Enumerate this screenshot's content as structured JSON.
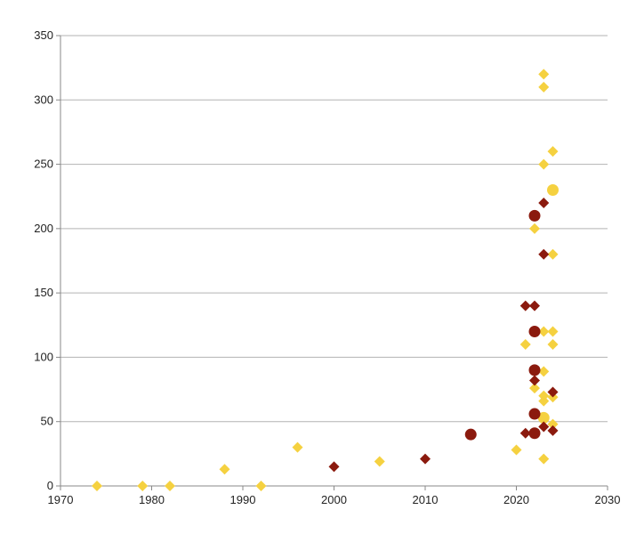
{
  "chart_data": {
    "type": "scatter",
    "title": "",
    "xlabel": "",
    "ylabel": "",
    "xlim": [
      1970,
      2030
    ],
    "ylim": [
      0,
      350
    ],
    "x_ticks": [
      "1970",
      "1980",
      "1990",
      "2000",
      "2010",
      "2020",
      "2030"
    ],
    "y_ticks": [
      "0",
      "50",
      "100",
      "150",
      "200",
      "250",
      "300",
      "350"
    ],
    "grid": "horizontal",
    "legend": "none",
    "series": [
      {
        "color": "#f5d140",
        "points": [
          {
            "x": 1974,
            "y": 0,
            "marker": "diamond"
          },
          {
            "x": 1979,
            "y": 0,
            "marker": "diamond"
          },
          {
            "x": 1982,
            "y": 0,
            "marker": "diamond"
          },
          {
            "x": 1988,
            "y": 13,
            "marker": "diamond"
          },
          {
            "x": 1992,
            "y": 0,
            "marker": "diamond"
          },
          {
            "x": 1996,
            "y": 30,
            "marker": "diamond"
          },
          {
            "x": 2005,
            "y": 19,
            "marker": "diamond"
          },
          {
            "x": 2020,
            "y": 28,
            "marker": "diamond"
          },
          {
            "x": 2021,
            "y": 110,
            "marker": "diamond"
          },
          {
            "x": 2022,
            "y": 200,
            "marker": "diamond"
          },
          {
            "x": 2022,
            "y": 76,
            "marker": "diamond"
          },
          {
            "x": 2023,
            "y": 320,
            "marker": "diamond"
          },
          {
            "x": 2023,
            "y": 310,
            "marker": "diamond"
          },
          {
            "x": 2023,
            "y": 250,
            "marker": "diamond"
          },
          {
            "x": 2023,
            "y": 120,
            "marker": "diamond"
          },
          {
            "x": 2023,
            "y": 89,
            "marker": "diamond"
          },
          {
            "x": 2023,
            "y": 70,
            "marker": "diamond"
          },
          {
            "x": 2023,
            "y": 66,
            "marker": "diamond"
          },
          {
            "x": 2023,
            "y": 53,
            "marker": "circle"
          },
          {
            "x": 2023,
            "y": 21,
            "marker": "diamond"
          },
          {
            "x": 2024,
            "y": 260,
            "marker": "diamond"
          },
          {
            "x": 2024,
            "y": 230,
            "marker": "circle"
          },
          {
            "x": 2024,
            "y": 180,
            "marker": "diamond"
          },
          {
            "x": 2024,
            "y": 120,
            "marker": "diamond"
          },
          {
            "x": 2024,
            "y": 110,
            "marker": "diamond"
          },
          {
            "x": 2024,
            "y": 69,
            "marker": "diamond"
          },
          {
            "x": 2024,
            "y": 48,
            "marker": "diamond"
          }
        ]
      },
      {
        "color": "#8b1a0e",
        "points": [
          {
            "x": 2000,
            "y": 15,
            "marker": "diamond"
          },
          {
            "x": 2010,
            "y": 21,
            "marker": "diamond"
          },
          {
            "x": 2015,
            "y": 40,
            "marker": "circle"
          },
          {
            "x": 2021,
            "y": 140,
            "marker": "diamond"
          },
          {
            "x": 2021,
            "y": 41,
            "marker": "diamond"
          },
          {
            "x": 2022,
            "y": 210,
            "marker": "circle"
          },
          {
            "x": 2022,
            "y": 140,
            "marker": "diamond"
          },
          {
            "x": 2022,
            "y": 120,
            "marker": "circle"
          },
          {
            "x": 2022,
            "y": 90,
            "marker": "circle"
          },
          {
            "x": 2022,
            "y": 82,
            "marker": "diamond"
          },
          {
            "x": 2022,
            "y": 56,
            "marker": "circle"
          },
          {
            "x": 2022,
            "y": 41,
            "marker": "circle"
          },
          {
            "x": 2023,
            "y": 220,
            "marker": "diamond"
          },
          {
            "x": 2023,
            "y": 180,
            "marker": "diamond"
          },
          {
            "x": 2023,
            "y": 46,
            "marker": "diamond"
          },
          {
            "x": 2024,
            "y": 73,
            "marker": "diamond"
          },
          {
            "x": 2024,
            "y": 43,
            "marker": "diamond"
          }
        ]
      }
    ]
  }
}
